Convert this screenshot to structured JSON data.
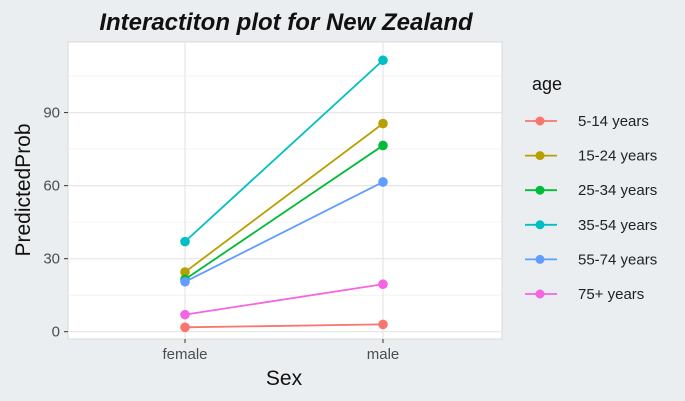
{
  "chart_data": {
    "type": "line",
    "title": "Interactiton plot for New Zealand",
    "xlabel": "Sex",
    "ylabel": "PredictedProb",
    "categories": [
      "female",
      "male"
    ],
    "y_ticks": [
      0,
      30,
      60,
      90
    ],
    "ylim": [
      -3,
      119
    ],
    "grid": true,
    "legend": {
      "title": "age",
      "position": "right"
    },
    "series": [
      {
        "name": "5-14 years",
        "color": "#f8766d",
        "values": [
          1.8,
          3.0
        ]
      },
      {
        "name": "15-24 years",
        "color": "#b79f00",
        "values": [
          24.5,
          85.5
        ]
      },
      {
        "name": "25-34 years",
        "color": "#00ba38",
        "values": [
          21.5,
          76.5
        ]
      },
      {
        "name": "35-54 years",
        "color": "#00bfc4",
        "values": [
          37.0,
          111.5
        ]
      },
      {
        "name": "55-74 years",
        "color": "#619cff",
        "values": [
          20.5,
          61.5
        ]
      },
      {
        "name": "75+ years",
        "color": "#f564e3",
        "values": [
          7.0,
          19.5
        ]
      }
    ]
  }
}
